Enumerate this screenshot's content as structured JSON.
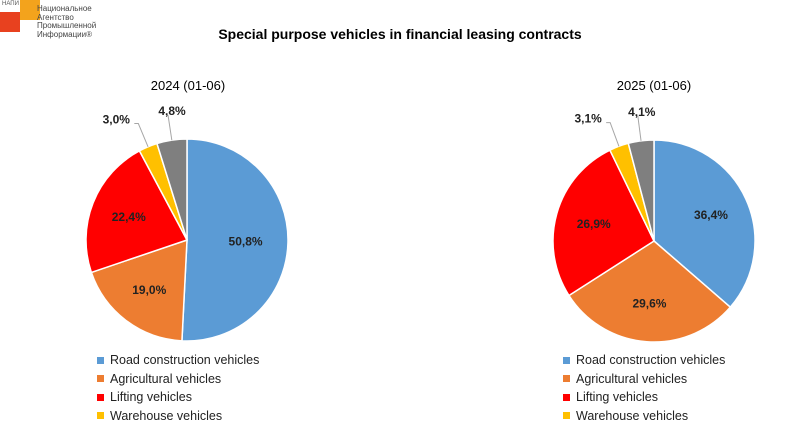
{
  "logo": {
    "tag": "НАПИ",
    "name": "Национальное\nАгентство\nПромышленной\nИнформации®"
  },
  "title": "Special purpose vehicles in financial leasing contracts",
  "colors": {
    "Road construction vehicles": "#5b9bd5",
    "Agricultural vehicles": "#ed7d31",
    "Lifting vehicles": "#ff0000",
    "Warehouse vehicles": "#ffc000",
    "Other": "#7f7f7f"
  },
  "legend_items": [
    "Road construction vehicles",
    "Agricultural vehicles",
    "Lifting vehicles",
    "Warehouse vehicles"
  ],
  "chart_data": [
    {
      "type": "pie",
      "title": "2024 (01-06)",
      "labels": [
        "Road construction vehicles",
        "Agricultural vehicles",
        "Lifting vehicles",
        "Warehouse vehicles",
        ""
      ],
      "values": [
        50.8,
        19.0,
        22.4,
        3.0,
        4.8
      ],
      "value_labels": [
        "50,8%",
        "19,0%",
        "22,4%",
        "3,0%",
        "4,8%"
      ],
      "legend_position": "bottom"
    },
    {
      "type": "pie",
      "title": "2025 (01-06)",
      "labels": [
        "Road construction vehicles",
        "Agricultural vehicles",
        "Lifting vehicles",
        "Warehouse vehicles",
        ""
      ],
      "values": [
        36.4,
        29.6,
        26.9,
        3.1,
        4.1
      ],
      "value_labels": [
        "36,4%",
        "29,6%",
        "26,9%",
        "3,1%",
        "4,1%"
      ],
      "legend_position": "bottom"
    }
  ]
}
